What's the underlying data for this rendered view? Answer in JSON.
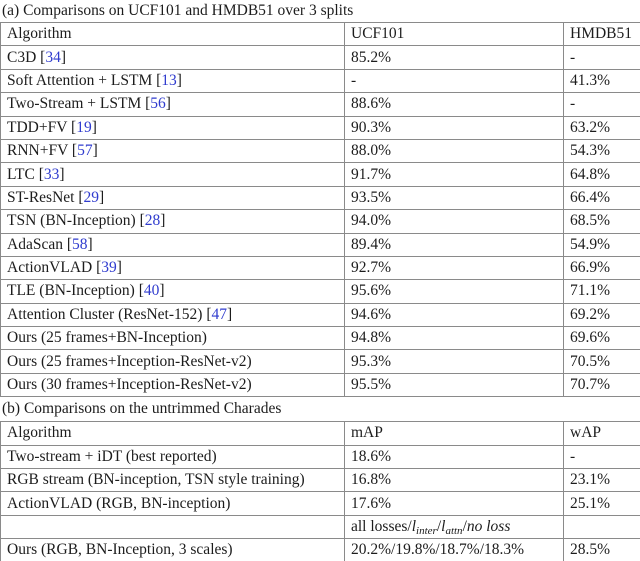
{
  "colors": {
    "citation_blue": "#2f3bce",
    "border_gray": "#8a8a8a",
    "text": "#1c1c1c",
    "background": "#ffffff"
  },
  "caption_a": "(a) Comparisons on UCF101 and HMDB51 over 3 splits",
  "caption_b": "(b) Comparisons on the untrimmed Charades",
  "table_a": {
    "headers": [
      "Algorithm",
      "UCF101",
      "HMDB51"
    ],
    "rows": [
      {
        "name": "C3D",
        "cite": "34",
        "ucf101": "85.2%",
        "hmdb51": "-"
      },
      {
        "name": "Soft Attention + LSTM",
        "cite": "13",
        "ucf101": "-",
        "hmdb51": "41.3%"
      },
      {
        "name": "Two-Stream + LSTM",
        "cite": "56",
        "ucf101": "88.6%",
        "hmdb51": "-"
      },
      {
        "name": "TDD+FV",
        "cite": "19",
        "ucf101": "90.3%",
        "hmdb51": "63.2%"
      },
      {
        "name": "RNN+FV",
        "cite": "57",
        "ucf101": "88.0%",
        "hmdb51": "54.3%"
      },
      {
        "name": "LTC",
        "cite": "33",
        "ucf101": "91.7%",
        "hmdb51": "64.8%"
      },
      {
        "name": "ST-ResNet",
        "cite": "29",
        "ucf101": "93.5%",
        "hmdb51": "66.4%"
      },
      {
        "name": "TSN (BN-Inception)",
        "cite": "28",
        "ucf101": "94.0%",
        "hmdb51": "68.5%"
      },
      {
        "name": "AdaScan",
        "cite": "58",
        "ucf101": "89.4%",
        "hmdb51": "54.9%"
      },
      {
        "name": "ActionVLAD",
        "cite": "39",
        "ucf101": "92.7%",
        "hmdb51": "66.9%"
      },
      {
        "name": "TLE (BN-Inception)",
        "cite": "40",
        "ucf101": "95.6%",
        "hmdb51": "71.1%"
      },
      {
        "name": "Attention Cluster (ResNet-152)",
        "cite": "47",
        "ucf101": "94.6%",
        "hmdb51": "69.2%"
      },
      {
        "name": "Ours (25 frames+BN-Inception)",
        "cite": "",
        "ucf101": "94.8%",
        "hmdb51": "69.6%"
      },
      {
        "name": "Ours (25 frames+Inception-ResNet-v2)",
        "cite": "",
        "ucf101": "95.3%",
        "hmdb51": "70.5%"
      },
      {
        "name": "Ours (30 frames+Inception-ResNet-v2)",
        "cite": "",
        "ucf101": "95.5%",
        "hmdb51": "70.7%"
      }
    ]
  },
  "table_b": {
    "headers": [
      "Algorithm",
      "mAP",
      "wAP"
    ],
    "rows": [
      {
        "name": "Two-stream + iDT (best reported)",
        "map": "18.6%",
        "wap": "-"
      },
      {
        "name": "RGB stream (BN-inception, TSN style training)",
        "map": "16.8%",
        "wap": "23.1%"
      },
      {
        "name": "ActionVLAD (RGB, BN-inception)",
        "map": "17.6%",
        "wap": "25.1%"
      }
    ],
    "loss_cell": {
      "prefix": "all losses/",
      "var1": "l",
      "sub1": "inter",
      "sep1": "/",
      "var2": "l",
      "sub2": "attn",
      "sep2": "/",
      "tail": "no loss"
    },
    "ours_row": {
      "name": "Ours (RGB, BN-Inception, 3 scales)",
      "map": "20.2%/19.8%/18.7%/18.3%",
      "wap": "28.5%"
    }
  }
}
